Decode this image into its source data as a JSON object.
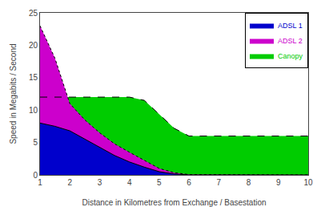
{
  "chart_data": {
    "type": "area",
    "xlabel": "Distance in Kilometres from Exchange / Basestation",
    "ylabel": "Speed in Megabits / Second",
    "series": [
      {
        "name": "ADSL 1",
        "color": "#0000cc",
        "line_style": "solid",
        "x": [
          1,
          1.5,
          2,
          2.5,
          3,
          3.5,
          4,
          4.5,
          5,
          5.5,
          6,
          10
        ],
        "values": [
          8.0,
          7.5,
          6.8,
          5.5,
          4.2,
          3.0,
          2.0,
          1.2,
          0.5,
          0.15,
          0.0,
          0.0
        ]
      },
      {
        "name": "ADSL 2",
        "color": "#cc00cc",
        "line_style": "dotted",
        "x": [
          1,
          1.5,
          2,
          2.5,
          3,
          3.5,
          4,
          4.5,
          5,
          5.5,
          6,
          10
        ],
        "values": [
          23.0,
          18.0,
          11.0,
          8.5,
          6.5,
          4.8,
          3.5,
          2.2,
          1.0,
          0.35,
          0.05,
          0.0
        ]
      },
      {
        "name": "Canopy",
        "color": "#00cc00",
        "line_style": "dashed",
        "x": [
          1,
          2,
          4,
          4.5,
          5.5,
          6,
          6.01,
          10
        ],
        "values": [
          12,
          12,
          12,
          11.5,
          7.2,
          6,
          6,
          6
        ]
      }
    ],
    "xlim": [
      1,
      10
    ],
    "ylim": [
      0,
      25
    ],
    "xticks": [
      1,
      2,
      3,
      4,
      5,
      6,
      7,
      8,
      9,
      10
    ],
    "yticks": [
      0,
      5,
      10,
      15,
      20,
      25
    ],
    "grid": false,
    "legend": "upper right"
  }
}
